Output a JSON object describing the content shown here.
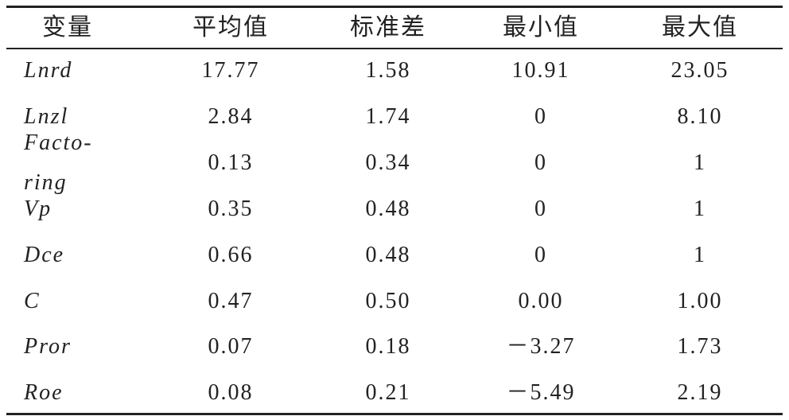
{
  "table": {
    "header": [
      "变量",
      "平均值",
      "标准差",
      "最小值",
      "最大值"
    ],
    "rows": [
      [
        "Lnrd",
        "17.77",
        "1.58",
        "10.91",
        "23.05"
      ],
      [
        "Lnzl",
        "2.84",
        "1.74",
        "0",
        "8.10"
      ],
      [
        "Facto-\nring",
        "0.13",
        "0.34",
        "0",
        "1"
      ],
      [
        "Vp",
        "0.35",
        "0.48",
        "0",
        "1"
      ],
      [
        "Dce",
        "0.66",
        "0.48",
        "0",
        "1"
      ],
      [
        "C",
        "0.47",
        "0.50",
        "0.00",
        "1.00"
      ],
      [
        "Pror",
        "0.07",
        "0.18",
        "－3.27",
        "1.73"
      ],
      [
        "Roe",
        "0.08",
        "0.21",
        "－5.49",
        "2.19"
      ]
    ]
  }
}
